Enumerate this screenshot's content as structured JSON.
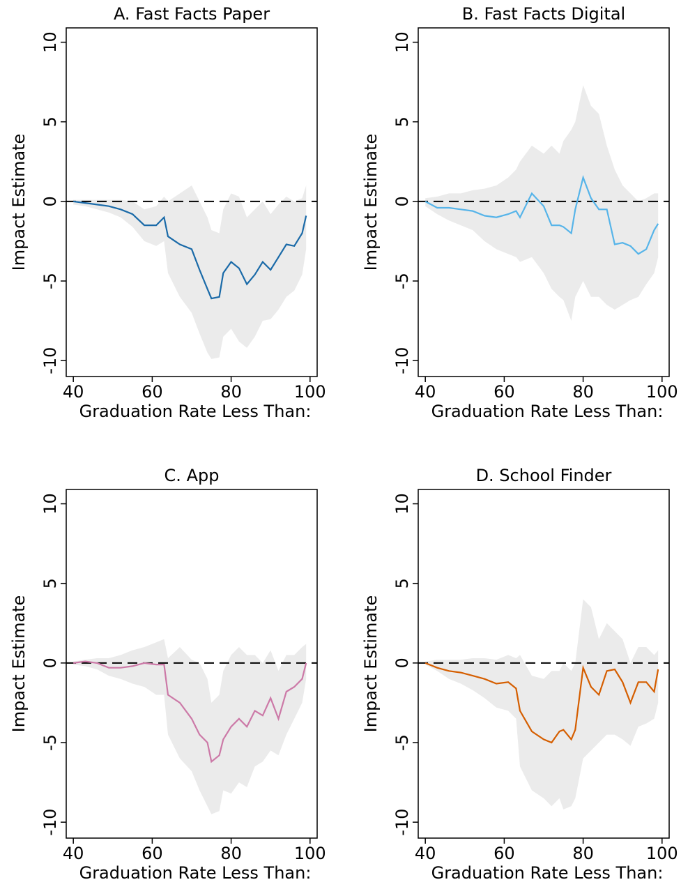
{
  "chart_data": [
    {
      "type": "line",
      "title": "A. Fast Facts Paper",
      "xlabel": "Graduation Rate Less Than:",
      "ylabel": "Impact Estimate",
      "color": "#1a6aa8",
      "band_color": "#ebebeb",
      "hline": 0,
      "xlim": [
        38.2,
        101.8
      ],
      "ylim": [
        -11,
        10.9
      ],
      "xticks": [
        40,
        60,
        80,
        100
      ],
      "yticks": [
        -10,
        -5,
        0,
        5,
        10
      ],
      "x": [
        40,
        43,
        46,
        49,
        52,
        55,
        58,
        61,
        63,
        64,
        67,
        70,
        72,
        74,
        75,
        77,
        78,
        80,
        82,
        84,
        86,
        88,
        90,
        92,
        94,
        96,
        98,
        99
      ],
      "values": [
        0,
        -0.1,
        -0.2,
        -0.3,
        -0.5,
        -0.8,
        -1.5,
        -1.5,
        -1.0,
        -2.2,
        -2.7,
        -3.0,
        -4.3,
        -5.5,
        -6.1,
        -6.0,
        -4.5,
        -3.8,
        -4.2,
        -5.2,
        -4.6,
        -3.8,
        -4.3,
        -3.5,
        -2.7,
        -2.8,
        -2.0,
        -0.9
      ],
      "lower": [
        -0.2,
        -0.3,
        -0.5,
        -0.7,
        -1.0,
        -1.6,
        -2.5,
        -2.8,
        -2.5,
        -4.5,
        -6.0,
        -7.0,
        -8.3,
        -9.5,
        -9.9,
        -9.8,
        -8.5,
        -8.0,
        -8.8,
        -9.2,
        -8.5,
        -7.5,
        -7.4,
        -6.8,
        -6.0,
        -5.6,
        -4.6,
        -3.0
      ],
      "upper": [
        0.1,
        0.1,
        0.1,
        0.1,
        0.1,
        0,
        -0.5,
        -0.3,
        0.3,
        0,
        0.5,
        1.0,
        0,
        -1.0,
        -1.8,
        -2.0,
        -0.5,
        0.5,
        0.3,
        -1.0,
        -0.5,
        0,
        -0.8,
        -0.2,
        0.3,
        0,
        0.2,
        1.0
      ]
    },
    {
      "type": "line",
      "title": "B. Fast Facts Digital",
      "xlabel": "Graduation Rate Less Than:",
      "ylabel": "Impact Estimate",
      "color": "#56b4e9",
      "band_color": "#ebebeb",
      "hline": 0,
      "xlim": [
        38.2,
        101.8
      ],
      "ylim": [
        -11,
        10.9
      ],
      "xticks": [
        40,
        60,
        80,
        100
      ],
      "yticks": [
        -10,
        -5,
        0,
        5,
        10
      ],
      "x": [
        40,
        43,
        46,
        49,
        52,
        55,
        58,
        61,
        63,
        64,
        67,
        70,
        72,
        74,
        75,
        77,
        78,
        80,
        82,
        84,
        86,
        88,
        90,
        92,
        94,
        96,
        98,
        99
      ],
      "values": [
        0,
        -0.4,
        -0.4,
        -0.5,
        -0.6,
        -0.9,
        -1.0,
        -0.8,
        -0.6,
        -1.0,
        0.5,
        -0.3,
        -1.5,
        -1.5,
        -1.6,
        -2.0,
        -0.5,
        1.5,
        0.2,
        -0.5,
        -0.5,
        -2.7,
        -2.6,
        -2.8,
        -3.3,
        -3.0,
        -1.8,
        -1.4
      ],
      "lower": [
        -0.3,
        -0.8,
        -1.2,
        -1.5,
        -1.8,
        -2.5,
        -3.0,
        -3.3,
        -3.5,
        -3.8,
        -3.5,
        -4.5,
        -5.5,
        -6.0,
        -6.2,
        -7.5,
        -6.0,
        -5.0,
        -6.0,
        -6.0,
        -6.5,
        -6.8,
        -6.5,
        -6.2,
        -6.0,
        -5.2,
        -4.5,
        -3.5
      ],
      "upper": [
        0.2,
        0.3,
        0.5,
        0.5,
        0.7,
        0.8,
        1.0,
        1.5,
        2.0,
        2.5,
        3.5,
        3.0,
        3.5,
        3.0,
        3.8,
        4.5,
        5.0,
        7.3,
        6.0,
        5.5,
        3.5,
        2.0,
        1.0,
        0.5,
        0,
        0.2,
        0.5,
        0.5
      ]
    },
    {
      "type": "line",
      "title": "C. App",
      "xlabel": "Graduation Rate Less Than:",
      "ylabel": "Impact Estimate",
      "color": "#cc79a7",
      "band_color": "#ebebeb",
      "hline": 0,
      "xlim": [
        38.2,
        101.8
      ],
      "ylim": [
        -11,
        10.9
      ],
      "xticks": [
        40,
        60,
        80,
        100
      ],
      "yticks": [
        -10,
        -5,
        0,
        5,
        10
      ],
      "x": [
        40,
        43,
        46,
        49,
        52,
        55,
        58,
        61,
        63,
        64,
        67,
        70,
        72,
        74,
        75,
        77,
        78,
        80,
        82,
        84,
        86,
        88,
        90,
        92,
        94,
        96,
        98,
        99
      ],
      "values": [
        0,
        0.1,
        0,
        -0.3,
        -0.3,
        -0.2,
        0,
        -0.1,
        -0.1,
        -2.0,
        -2.5,
        -3.5,
        -4.5,
        -5.0,
        -6.2,
        -5.8,
        -4.8,
        -4.0,
        -3.5,
        -4.0,
        -3.0,
        -3.3,
        -2.2,
        -3.5,
        -1.8,
        -1.5,
        -1.0,
        0
      ],
      "lower": [
        -0.1,
        -0.2,
        -0.4,
        -0.8,
        -1.0,
        -1.3,
        -1.5,
        -2.0,
        -2.0,
        -4.5,
        -6.0,
        -6.8,
        -8.0,
        -9.0,
        -9.5,
        -9.3,
        -8.0,
        -8.2,
        -7.5,
        -7.8,
        -6.5,
        -6.2,
        -5.5,
        -5.8,
        -4.5,
        -3.5,
        -2.5,
        -1.0
      ],
      "upper": [
        0.1,
        0.2,
        0.3,
        0.3,
        0.5,
        0.8,
        1.0,
        1.3,
        1.5,
        0.3,
        1.0,
        0.2,
        0,
        -1.0,
        -2.5,
        -2.0,
        -0.5,
        0.5,
        1.0,
        0.5,
        0.5,
        0,
        0.8,
        -0.5,
        0.5,
        0.5,
        1.0,
        1.2
      ]
    },
    {
      "type": "line",
      "title": "D. School Finder",
      "xlabel": "Graduation Rate Less Than:",
      "ylabel": "Impact Estimate",
      "color": "#d55e00",
      "band_color": "#ebebeb",
      "hline": 0,
      "xlim": [
        38.2,
        101.8
      ],
      "ylim": [
        -11,
        10.9
      ],
      "xticks": [
        40,
        60,
        80,
        100
      ],
      "yticks": [
        -10,
        -5,
        0,
        5,
        10
      ],
      "x": [
        40,
        43,
        46,
        49,
        52,
        55,
        58,
        61,
        63,
        64,
        67,
        70,
        72,
        74,
        75,
        77,
        78,
        80,
        82,
        84,
        86,
        88,
        90,
        92,
        94,
        96,
        98,
        99
      ],
      "values": [
        0,
        -0.3,
        -0.5,
        -0.6,
        -0.8,
        -1.0,
        -1.3,
        -1.2,
        -1.6,
        -3.0,
        -4.3,
        -4.8,
        -5.0,
        -4.3,
        -4.2,
        -4.8,
        -4.2,
        -0.3,
        -1.5,
        -2.0,
        -0.5,
        -0.4,
        -1.2,
        -2.5,
        -1.2,
        -1.2,
        -1.8,
        -0.4
      ],
      "lower": [
        -0.1,
        -0.5,
        -1.0,
        -1.3,
        -1.7,
        -2.2,
        -2.8,
        -3.0,
        -3.5,
        -6.5,
        -8.0,
        -8.5,
        -9.0,
        -8.5,
        -9.2,
        -9.0,
        -8.5,
        -6.0,
        -5.5,
        -5.0,
        -4.5,
        -4.5,
        -4.8,
        -5.2,
        -4.0,
        -3.8,
        -3.5,
        -2.5
      ],
      "upper": [
        0.1,
        0.2,
        0.2,
        0.2,
        0.3,
        0.3,
        0.2,
        0.5,
        0.3,
        0.5,
        -0.8,
        -1.0,
        -0.5,
        -0.5,
        0,
        -0.5,
        0,
        4.0,
        3.5,
        1.5,
        2.5,
        2.0,
        1.5,
        0,
        1.0,
        1.0,
        0.5,
        0.8
      ]
    }
  ]
}
